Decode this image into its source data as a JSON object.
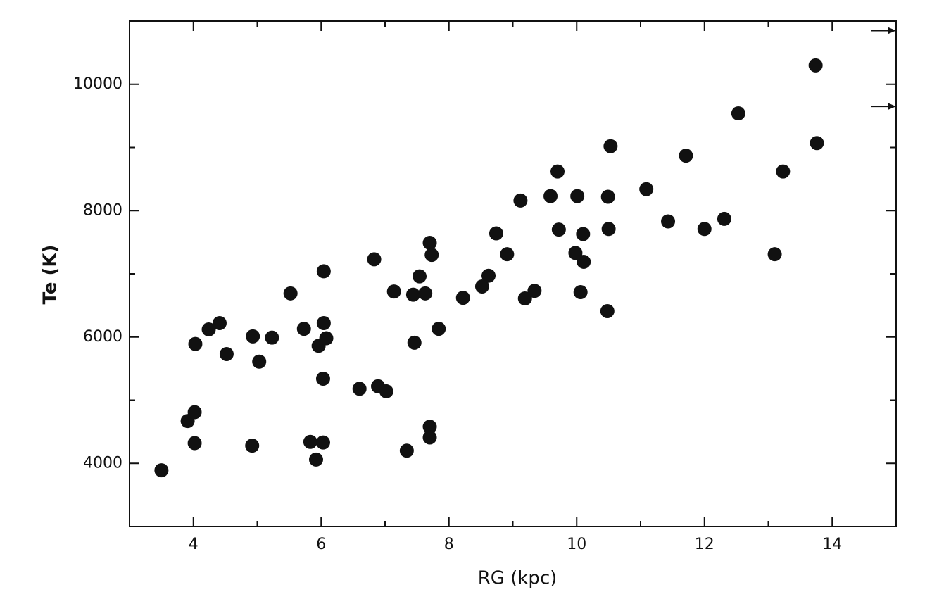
{
  "chart_data": {
    "type": "scatter",
    "x_label": "RG (kpc)",
    "y_label": "Te (K)",
    "x": [
      3.5,
      3.91,
      4.02,
      4.02,
      4.03,
      4.24,
      4.41,
      4.52,
      4.92,
      4.93,
      5.03,
      5.23,
      5.52,
      5.73,
      5.83,
      5.92,
      5.96,
      6.03,
      6.04,
      6.08,
      6.03,
      6.04,
      6.6,
      6.89,
      7.02,
      6.83,
      7.14,
      7.34,
      7.46,
      7.44,
      7.54,
      7.63,
      7.7,
      7.73,
      7.7,
      7.7,
      7.84,
      8.22,
      8.52,
      8.62,
      8.74,
      8.91,
      9.12,
      9.19,
      9.34,
      9.59,
      9.7,
      9.72,
      9.98,
      10.01,
      10.1,
      10.11,
      10.06,
      10.48,
      10.5,
      10.49,
      10.53,
      11.09,
      11.43,
      11.71,
      12.0,
      12.31,
      12.53,
      13.1,
      13.23,
      13.74,
      13.76
    ],
    "values": [
      3890,
      4670,
      4810,
      4320,
      5890,
      6120,
      6220,
      5730,
      4280,
      6010,
      5610,
      5990,
      6690,
      6130,
      4340,
      4060,
      5860,
      4330,
      6220,
      5980,
      5340,
      7040,
      5180,
      5220,
      5140,
      7230,
      6720,
      4200,
      5910,
      6670,
      6960,
      6690,
      7490,
      7300,
      4580,
      4410,
      6130,
      6620,
      6800,
      6970,
      7640,
      7310,
      8160,
      6610,
      6730,
      8230,
      8620,
      7700,
      7330,
      8230,
      7630,
      7190,
      6710,
      6410,
      7710,
      8220,
      9020,
      8340,
      7830,
      8870,
      7710,
      7870,
      9540,
      7310,
      8620,
      10300,
      9070
    ],
    "color": "#111111",
    "xlim": [
      3,
      15
    ],
    "ylim": [
      3000,
      11000
    ],
    "xticks": [
      4,
      6,
      8,
      10,
      12,
      14
    ],
    "x_minor_ticks": [
      3,
      5,
      7,
      9,
      11,
      13,
      15
    ],
    "yticks": [
      4000,
      6000,
      8000,
      10000
    ],
    "y_minor_ticks": [
      3000,
      5000,
      7000,
      9000,
      11000
    ],
    "right_edge_markers": [
      10850,
      9650
    ],
    "grid": false
  }
}
